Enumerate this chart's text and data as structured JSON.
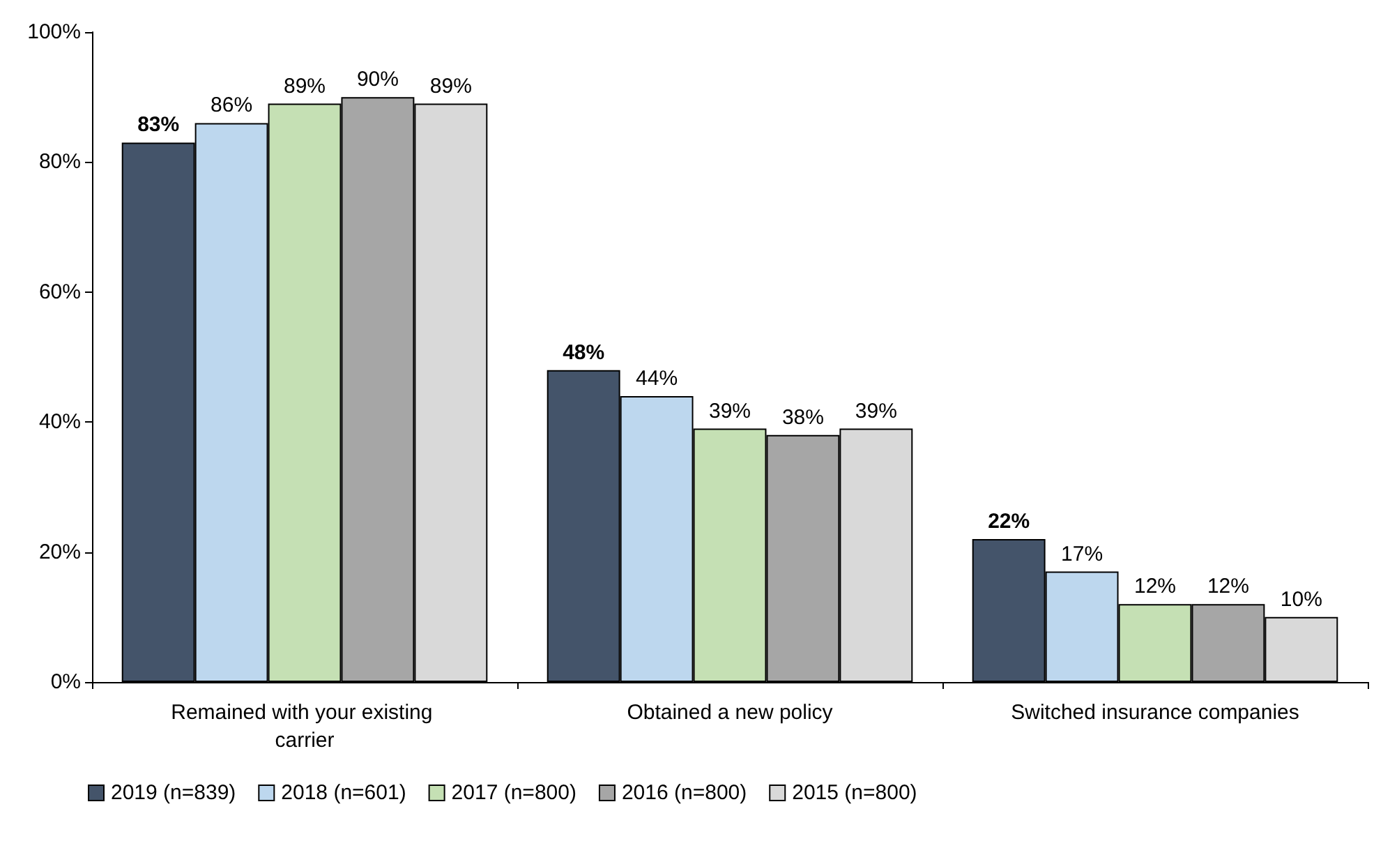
{
  "chart_data": {
    "type": "bar",
    "categories": [
      "Remained with your existing carrier",
      "Obtained a new policy",
      "Switched insurance companies"
    ],
    "series": [
      {
        "name": "2019 (n=839)",
        "color": "#44546a",
        "values": [
          83,
          48,
          22
        ],
        "value_labels": [
          "83%",
          "48%",
          "22%"
        ]
      },
      {
        "name": "2018 (n=601)",
        "color": "#bdd7ee",
        "values": [
          86,
          44,
          17
        ],
        "value_labels": [
          "86%",
          "44%",
          "17%"
        ]
      },
      {
        "name": "2017 (n=800)",
        "color": "#c5e0b4",
        "values": [
          89,
          39,
          12
        ],
        "value_labels": [
          "89%",
          "39%",
          "12%"
        ]
      },
      {
        "name": "2016 (n=800)",
        "color": "#a6a6a6",
        "values": [
          90,
          38,
          12
        ],
        "value_labels": [
          "90%",
          "38%",
          "12%"
        ]
      },
      {
        "name": "2015 (n=800)",
        "color": "#d9d9d9",
        "values": [
          89,
          39,
          10
        ],
        "value_labels": [
          "89%",
          "39%",
          "10%"
        ]
      }
    ],
    "ylim": [
      0,
      100
    ],
    "yticks": [
      {
        "value": 0,
        "label": "0%"
      },
      {
        "value": 20,
        "label": "20%"
      },
      {
        "value": 40,
        "label": "40%"
      },
      {
        "value": 60,
        "label": "60%"
      },
      {
        "value": 80,
        "label": "80%"
      },
      {
        "value": 100,
        "label": "100%"
      }
    ],
    "grid": false,
    "legend": "bottom"
  }
}
